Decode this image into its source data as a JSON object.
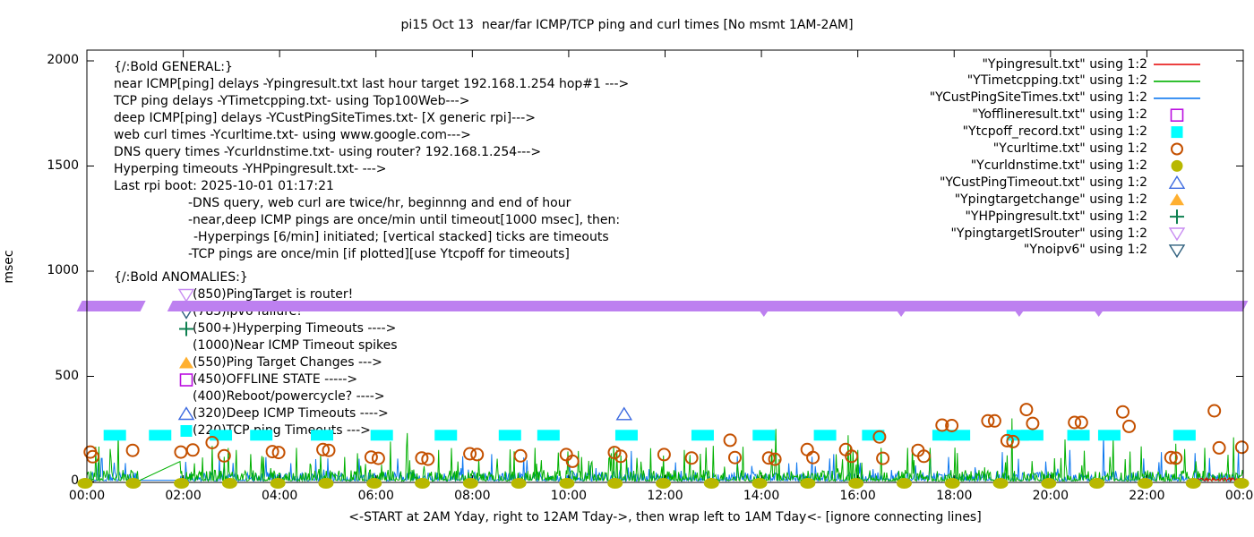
{
  "title": "pi15 Oct 13  near/far ICMP/TCP ping and curl times [No msmt 1AM-2AM]",
  "axes": {
    "ylabel": "msec",
    "xlabel": "<-START at 2AM Yday, right to 12AM Tday->, then wrap left to 1AM Tday<- [ignore connecting lines]",
    "y_ticks": [
      {
        "label": "0",
        "msec": 0
      },
      {
        "label": "500",
        "msec": 500
      },
      {
        "label": "1000",
        "msec": 1000
      },
      {
        "label": "1500",
        "msec": 1500
      },
      {
        "label": "2000",
        "msec": 2000
      }
    ],
    "x_ticks": [
      {
        "label": "00:00",
        "hour": 0
      },
      {
        "label": "02:00",
        "hour": 2
      },
      {
        "label": "04:00",
        "hour": 4
      },
      {
        "label": "06:00",
        "hour": 6
      },
      {
        "label": "08:00",
        "hour": 8
      },
      {
        "label": "10:00",
        "hour": 10
      },
      {
        "label": "12:00",
        "hour": 12
      },
      {
        "label": "14:00",
        "hour": 14
      },
      {
        "label": "16:00",
        "hour": 16
      },
      {
        "label": "18:00",
        "hour": 18
      },
      {
        "label": "20:00",
        "hour": 20
      },
      {
        "label": "22:00",
        "hour": 22
      },
      {
        "label": "00:00",
        "hour": 24
      }
    ]
  },
  "general_block": {
    "lines": [
      {
        "text": "{/:Bold GENERAL:}",
        "indent": 0
      },
      {
        "text": "near ICMP[ping] delays -Ypingresult.txt last hour target 192.168.1.254 hop#1 --->",
        "indent": 0
      },
      {
        "text": "TCP ping delays -YTimetcpping.txt- using Top100Web--->",
        "indent": 0
      },
      {
        "text": "deep ICMP[ping] delays -YCustPingSiteTimes.txt- [X generic rpi]--->",
        "indent": 0
      },
      {
        "text": "web curl times -Ycurltime.txt- using www.google.com--->",
        "indent": 0
      },
      {
        "text": "DNS query times -Ycurldnstime.txt- using router? 192.168.1.254--->",
        "indent": 0
      },
      {
        "text": "Hyperping timeouts -YHPpingresult.txt- --->",
        "indent": 0
      },
      {
        "text": "Last rpi boot: 2025-10-01 01:17:21",
        "indent": 0
      },
      {
        "text": "-DNS query, web curl are twice/hr, beginnng and end of hour",
        "indent": 1
      },
      {
        "text": "-near,deep ICMP pings are once/min until timeout[1000 msec], then:",
        "indent": 1
      },
      {
        "text": "-Hyperpings [6/min] initiated; [vertical stacked] ticks are timeouts",
        "indent": 2
      },
      {
        "text": "-TCP pings are once/min [if plotted][use Ytcpoff for timeouts]",
        "indent": 1
      }
    ]
  },
  "anomalies_block": {
    "lines": [
      {
        "text": "{/:Bold ANOMALIES:}",
        "marker": null,
        "color": null
      },
      {
        "text": "(850)PingTarget is router!",
        "marker": "triangle-down-open",
        "color": "#c88cf2"
      },
      {
        "text": "(785)ipv6 failure!",
        "marker": "triangle-down-open",
        "color": "#30607e"
      },
      {
        "text": "(500+)Hyperping Timeouts ---->",
        "marker": "plus",
        "color": "#0e8050"
      },
      {
        "text": "(1000)Near ICMP Timeout spikes",
        "marker": null,
        "color": null
      },
      {
        "text": "(550)Ping Target Changes --->",
        "marker": "triangle-up-filled",
        "color": "#ffb030"
      },
      {
        "text": "(450)OFFLINE STATE ----->",
        "marker": "square-open",
        "color": "#bb0fe0"
      },
      {
        "text": "(400)Reboot/powercycle? ---->",
        "marker": null,
        "color": null
      },
      {
        "text": "(320)Deep ICMP Timeouts ---->",
        "marker": "triangle-up-open",
        "color": "#3c6ae0"
      },
      {
        "text": "(220)TCP ping Timeouts --->",
        "marker": "square-filled",
        "color": "#00ffff"
      }
    ]
  },
  "legend": [
    {
      "label": "\"Ypingresult.txt\" using 1:2",
      "marker": "line",
      "color": "#e60000"
    },
    {
      "label": "\"YTimetcpping.txt\" using 1:2",
      "marker": "line",
      "color": "#00b000"
    },
    {
      "label": "\"YCustPingSiteTimes.txt\" using 1:2",
      "marker": "line",
      "color": "#0d78f0"
    },
    {
      "label": "\"Yofflineresult.txt\" using 1:2",
      "marker": "square-open",
      "color": "#bb0fe0"
    },
    {
      "label": "\"Ytcpoff_record.txt\" using 1:2",
      "marker": "square-filled",
      "color": "#00ffff"
    },
    {
      "label": "\"Ycurltime.txt\" using 1:2",
      "marker": "circle-open",
      "color": "#c45000"
    },
    {
      "label": "\"Ycurldnstime.txt\" using 1:2",
      "marker": "circle-filled",
      "color": "#b8b800"
    },
    {
      "label": "\"YCustPingTimeout.txt\" using 1:2",
      "marker": "triangle-up-open",
      "color": "#3c6ae0"
    },
    {
      "label": "\"Ypingtargetchange\" using 1:2",
      "marker": "triangle-up-filled",
      "color": "#ffb030"
    },
    {
      "label": "\"YHPpingresult.txt\" using 1:2",
      "marker": "plus",
      "color": "#0e8050"
    },
    {
      "label": "\"YpingtargetISrouter\" using 1:2",
      "marker": "triangle-down-open",
      "color": "#c88cf2"
    },
    {
      "label": "\"Ynoipv6\" using 1:2",
      "marker": "triangle-down-open",
      "color": "#30607e"
    }
  ],
  "chart_data": {
    "type": "line",
    "title": "pi15 Oct 13  near/far ICMP/TCP ping and curl times [No msmt 1AM-2AM]",
    "xlabel_unit": "time of day (hours 0-24)",
    "ylabel": "msec",
    "ylim": [
      0,
      2000
    ],
    "xlim_hours": [
      0,
      24
    ],
    "grid": false,
    "legend_position": "top-right",
    "noise_seed": 7,
    "series": [
      {
        "name": "YTimetcpping.txt TCP ping delays",
        "color": "#00b000",
        "style": "noisy-line",
        "baseline_msec": [
          2,
          50
        ],
        "burst_msec": [
          55,
          170
        ],
        "burst_prob": 0.055,
        "gap_hours": [
          1.07,
          1.95
        ],
        "gap_connecting_line_peak_msec": 95,
        "spikes_hour_msec": [
          [
            0.65,
            230
          ],
          [
            2.6,
            170
          ],
          [
            3.1,
            150
          ],
          [
            4.35,
            160
          ],
          [
            6.3,
            190
          ],
          [
            6.65,
            230
          ],
          [
            7.3,
            150
          ],
          [
            9.3,
            160
          ],
          [
            11.0,
            150
          ],
          [
            12.4,
            150
          ],
          [
            13.0,
            170
          ],
          [
            14.3,
            250
          ],
          [
            15.8,
            220
          ],
          [
            16.0,
            150
          ],
          [
            17.5,
            160
          ],
          [
            19.2,
            300
          ],
          [
            20.3,
            200
          ],
          [
            21.3,
            210
          ],
          [
            22.6,
            180
          ],
          [
            23.2,
            160
          ],
          [
            23.8,
            210
          ]
        ]
      },
      {
        "name": "YCustPingSiteTimes.txt deep ICMP delays",
        "color": "#0d78f0",
        "style": "noisy-line",
        "baseline_msec": [
          2,
          40
        ],
        "burst_msec": [
          42,
          127
        ],
        "burst_prob": 0.045,
        "gap_hours": [
          1.07,
          1.95
        ],
        "gap_flat_msec": 6,
        "spikes_hour_msec": [
          [
            0.3,
            110
          ],
          [
            2.75,
            120
          ],
          [
            5.0,
            110
          ],
          [
            8.4,
            130
          ],
          [
            11.3,
            145
          ],
          [
            13.5,
            120
          ],
          [
            15.5,
            130
          ],
          [
            17.5,
            150
          ],
          [
            19.0,
            140
          ],
          [
            20.4,
            150
          ],
          [
            21.1,
            230
          ],
          [
            22.3,
            140
          ],
          [
            23.0,
            135
          ],
          [
            23.9,
            150
          ]
        ]
      },
      {
        "name": "Ypingresult.txt near ICMP delays (last hour only)",
        "color": "#e60000",
        "style": "noisy-line",
        "baseline_msec": [
          2,
          12
        ],
        "burst_msec": [
          12,
          20
        ],
        "burst_prob": 0.02,
        "window_hours": [
          23.0,
          24.0
        ],
        "spikes_hour_msec": []
      }
    ],
    "markers": {
      "tcp_timeout_squares": {
        "source": "Ytcpoff_record.txt",
        "color": "#00ffff",
        "shape": "filled-square",
        "level_msec": 220,
        "hours": [
          0.58,
          1.52,
          2.78,
          3.62,
          4.88,
          6.12,
          7.45,
          8.78,
          9.58,
          11.2,
          12.78,
          14.05,
          15.32,
          16.32,
          17.78,
          18.1,
          19.32,
          19.62,
          20.58,
          21.22,
          22.78
        ]
      },
      "curl_time_circles": {
        "source": "Ycurltime.txt",
        "color": "#c45000",
        "shape": "open-circle",
        "points_hour_msec": [
          [
            0.07,
            140
          ],
          [
            0.12,
            118
          ],
          [
            0.95,
            148
          ],
          [
            1.95,
            140
          ],
          [
            2.2,
            150
          ],
          [
            2.6,
            185
          ],
          [
            2.85,
            122
          ],
          [
            3.85,
            142
          ],
          [
            3.98,
            138
          ],
          [
            4.9,
            152
          ],
          [
            5.02,
            148
          ],
          [
            5.9,
            116
          ],
          [
            6.05,
            110
          ],
          [
            6.95,
            112
          ],
          [
            7.08,
            106
          ],
          [
            7.95,
            132
          ],
          [
            8.1,
            128
          ],
          [
            9.0,
            122
          ],
          [
            9.95,
            128
          ],
          [
            10.08,
            96
          ],
          [
            10.95,
            138
          ],
          [
            11.08,
            120
          ],
          [
            11.98,
            128
          ],
          [
            12.55,
            112
          ],
          [
            13.35,
            196
          ],
          [
            13.45,
            114
          ],
          [
            14.15,
            112
          ],
          [
            14.28,
            106
          ],
          [
            14.95,
            152
          ],
          [
            15.07,
            114
          ],
          [
            15.75,
            152
          ],
          [
            15.87,
            120
          ],
          [
            16.45,
            212
          ],
          [
            16.52,
            110
          ],
          [
            17.25,
            148
          ],
          [
            17.37,
            120
          ],
          [
            17.75,
            268
          ],
          [
            17.95,
            266
          ],
          [
            18.7,
            288
          ],
          [
            18.84,
            288
          ],
          [
            19.1,
            194
          ],
          [
            19.22,
            190
          ],
          [
            19.5,
            342
          ],
          [
            19.63,
            276
          ],
          [
            20.5,
            281
          ],
          [
            20.64,
            281
          ],
          [
            21.5,
            331
          ],
          [
            21.63,
            262
          ],
          [
            22.5,
            114
          ],
          [
            22.6,
            111
          ],
          [
            23.4,
            336
          ],
          [
            23.5,
            160
          ],
          [
            23.97,
            163
          ]
        ]
      },
      "dns_time_dots": {
        "source": "Ycurldnstime.txt",
        "color": "#b8b800",
        "shape": "filled-circle",
        "level_msec": 0,
        "hours": [
          0,
          1,
          2,
          3,
          4,
          5,
          6,
          7,
          8,
          9,
          10,
          11,
          12,
          13,
          14,
          15,
          16,
          17,
          18,
          19,
          20,
          21,
          22,
          23,
          24
        ]
      },
      "deep_icmp_timeout_triangles": {
        "source": "YCustPingTimeout.txt",
        "color": "#3c6ae0",
        "shape": "open-triangle-up",
        "points_hour_msec": [
          [
            11.15,
            320
          ]
        ]
      },
      "pingtarget_is_router_band": {
        "source": "YpingtargetISrouter",
        "color": "#bd80f0",
        "shape": "band-of-down-triangles",
        "level_msec": 850,
        "segments_hours": [
          [
            -0.1,
            1.22
          ],
          [
            1.78,
            24.1
          ]
        ],
        "lower_tick_hours": [
          14.05,
          16.9,
          19.35,
          21.0
        ]
      }
    }
  }
}
